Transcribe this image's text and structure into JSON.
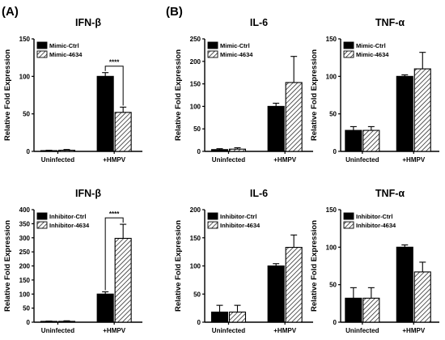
{
  "panel_labels": [
    "(A)",
    "(B)"
  ],
  "colors": {
    "series1_fill": "#000000",
    "series2_pattern": "diagonal-hatch",
    "axis": "#000000"
  },
  "chart_data": [
    {
      "type": "bar",
      "title": "IFN-β",
      "xlabel": "",
      "ylabel": "Relative Fold Expression",
      "categories": [
        "Uninfected",
        "+HMPV"
      ],
      "ylim": [
        0,
        150
      ],
      "yticks": [
        0,
        50,
        100,
        150
      ],
      "series": [
        {
          "name": "Mimic-Ctrl",
          "values": [
            1,
            100
          ],
          "errors": [
            0.5,
            5
          ],
          "style": "solid"
        },
        {
          "name": "Mimic-4634",
          "values": [
            1.5,
            52
          ],
          "errors": [
            1,
            7
          ],
          "style": "hatch"
        }
      ],
      "significance": [
        {
          "category": 1,
          "label": "****"
        }
      ],
      "legend": "top-left",
      "grid": false
    },
    {
      "type": "bar",
      "title": "IL-6",
      "xlabel": "",
      "ylabel": "Relative Fold Expression",
      "categories": [
        "Uninfected",
        "+HMPV"
      ],
      "ylim": [
        0,
        250
      ],
      "yticks": [
        0,
        50,
        100,
        150,
        200,
        250
      ],
      "series": [
        {
          "name": "Mimic-Ctrl",
          "values": [
            4,
            100
          ],
          "errors": [
            2,
            7
          ],
          "style": "solid"
        },
        {
          "name": "Mimic-4634",
          "values": [
            5,
            153
          ],
          "errors": [
            3,
            58
          ],
          "style": "hatch"
        }
      ],
      "significance": [],
      "legend": "top-left",
      "grid": false
    },
    {
      "type": "bar",
      "title": "TNF-α",
      "xlabel": "",
      "ylabel": "Relative Fold Expression",
      "categories": [
        "Uninfected",
        "+HMPV"
      ],
      "ylim": [
        0,
        150
      ],
      "yticks": [
        0,
        50,
        100,
        150
      ],
      "series": [
        {
          "name": "Mimic-Ctrl",
          "values": [
            28,
            100
          ],
          "errors": [
            5,
            2
          ],
          "style": "solid"
        },
        {
          "name": "Mimic-4634",
          "values": [
            28,
            110
          ],
          "errors": [
            5,
            22
          ],
          "style": "hatch"
        }
      ],
      "significance": [],
      "legend": "top-left",
      "grid": false
    },
    {
      "type": "bar",
      "title": "IFN-β",
      "xlabel": "",
      "ylabel": "Relative Fold Expression",
      "categories": [
        "Uninfected",
        "+HMPV"
      ],
      "ylim": [
        0,
        400
      ],
      "yticks": [
        0,
        50,
        100,
        150,
        200,
        250,
        300,
        350,
        400
      ],
      "series": [
        {
          "name": "Inhibitor-Ctrl",
          "values": [
            3,
            100
          ],
          "errors": [
            1,
            8
          ],
          "style": "solid"
        },
        {
          "name": "Inhibitor-4634",
          "values": [
            3,
            298
          ],
          "errors": [
            2,
            50
          ],
          "style": "hatch"
        }
      ],
      "significance": [
        {
          "category": 1,
          "label": "****"
        }
      ],
      "legend": "top-left",
      "grid": false
    },
    {
      "type": "bar",
      "title": "IL-6",
      "xlabel": "",
      "ylabel": "Relative Fold Expression",
      "categories": [
        "Uninfected",
        "+HMPV"
      ],
      "ylim": [
        0,
        200
      ],
      "yticks": [
        0,
        50,
        100,
        150,
        200
      ],
      "series": [
        {
          "name": "Inhibitor-Ctrl",
          "values": [
            18,
            100
          ],
          "errors": [
            12,
            4
          ],
          "style": "solid"
        },
        {
          "name": "Inhibitor-4634",
          "values": [
            18,
            133
          ],
          "errors": [
            12,
            22
          ],
          "style": "hatch"
        }
      ],
      "significance": [],
      "legend": "top-left",
      "grid": false
    },
    {
      "type": "bar",
      "title": "TNF-α",
      "xlabel": "",
      "ylabel": "Relative Fold Expression",
      "categories": [
        "Uninfected",
        "+HMPV"
      ],
      "ylim": [
        0,
        150
      ],
      "yticks": [
        0,
        50,
        100,
        150
      ],
      "series": [
        {
          "name": "Inhibitor-Ctrl",
          "values": [
            32,
            100
          ],
          "errors": [
            14,
            3
          ],
          "style": "solid"
        },
        {
          "name": "Inhibitor-4634",
          "values": [
            32,
            67
          ],
          "errors": [
            14,
            13
          ],
          "style": "hatch"
        }
      ],
      "significance": [],
      "legend": "top-left",
      "grid": false
    }
  ]
}
